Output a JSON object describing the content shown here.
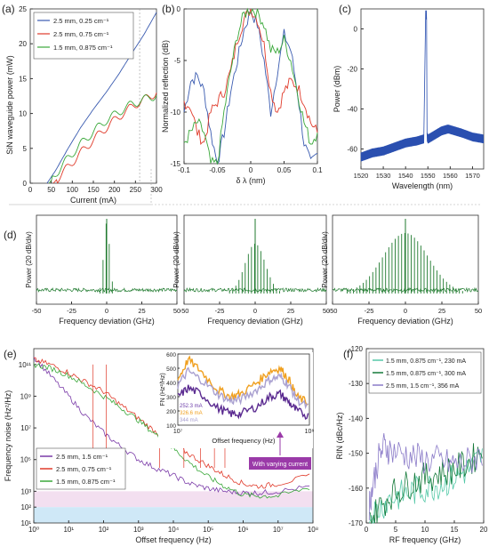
{
  "chart_data": [
    {
      "id": "a",
      "panel_label": "(a)",
      "type": "line",
      "xlabel": "Current (mA)",
      "ylabel": "SiN waveguide power (mW)",
      "xlim": [
        0,
        300
      ],
      "ylim": [
        0,
        25
      ],
      "xticks": [
        0,
        50,
        100,
        150,
        200,
        250,
        300
      ],
      "yticks": [
        0,
        5,
        10,
        15,
        20,
        25
      ],
      "legend_position": "top-left",
      "series": [
        {
          "name": "2.5 mm, 0.25 cm⁻¹",
          "color": "#3a5bb0",
          "x": [
            40,
            60,
            90,
            120,
            150,
            180,
            210,
            240,
            270,
            300
          ],
          "y": [
            0,
            1.8,
            5,
            8,
            10.6,
            13,
            15.6,
            18.5,
            21.3,
            24.5
          ]
        },
        {
          "name": "2.5 mm, 0.75 cm⁻¹",
          "color": "#e03a2a",
          "x": [
            55,
            70,
            100,
            130,
            160,
            190,
            220,
            250,
            280,
            300
          ],
          "y": [
            0,
            1,
            3,
            5,
            6.8,
            8.5,
            10,
            11.3,
            12.3,
            13
          ]
        },
        {
          "name": "1.5 mm, 0.875 cm⁻¹",
          "color": "#3aa83a",
          "x": [
            45,
            60,
            90,
            120,
            150,
            180,
            210,
            240,
            270,
            300
          ],
          "y": [
            0,
            1.3,
            3.6,
            5.6,
            7.4,
            9,
            10.2,
            11.3,
            12,
            12.6
          ]
        }
      ]
    },
    {
      "id": "b",
      "panel_label": "(b)",
      "type": "line",
      "xlabel": "δ λ (nm)",
      "ylabel": "Normalized reflection (dB)",
      "xlim": [
        -0.1,
        0.1
      ],
      "ylim": [
        -15,
        0
      ],
      "xticks": [
        -0.1,
        -0.05,
        0,
        0.05,
        0.1
      ],
      "xtick_labels": [
        "-0.1",
        "-0.05",
        "0",
        "0.05",
        "0.1"
      ],
      "yticks": [
        -15,
        -10,
        -5,
        0
      ],
      "series": [
        {
          "color": "#3a5bb0",
          "x": [
            -0.1,
            -0.09,
            -0.08,
            -0.07,
            -0.06,
            -0.05,
            -0.04,
            -0.03,
            -0.02,
            -0.01,
            0,
            0.01,
            0.02,
            0.03,
            0.04,
            0.05,
            0.06,
            0.07,
            0.08,
            0.09,
            0.1
          ],
          "y": [
            -10,
            -7,
            -6.5,
            -8,
            -12,
            -15,
            -12,
            -8,
            -5,
            -2,
            -0.2,
            -1.5,
            -5,
            -10,
            -6,
            -2.5,
            -4,
            -8,
            -13,
            -15,
            -14
          ]
        },
        {
          "color": "#e03a2a",
          "x": [
            -0.1,
            -0.09,
            -0.08,
            -0.07,
            -0.06,
            -0.05,
            -0.04,
            -0.03,
            -0.02,
            -0.01,
            0,
            0.01,
            0.02,
            0.03,
            0.04,
            0.05,
            0.06,
            0.07,
            0.08,
            0.09,
            0.1
          ],
          "y": [
            -9,
            -9.5,
            -12,
            -13,
            -10,
            -9,
            -8,
            -6,
            -3,
            -1,
            0,
            -1,
            -3.5,
            -8,
            -10,
            -8,
            -7,
            -7.5,
            -9,
            -11,
            -12
          ]
        },
        {
          "color": "#3aa83a",
          "x": [
            -0.1,
            -0.09,
            -0.08,
            -0.07,
            -0.06,
            -0.05,
            -0.04,
            -0.03,
            -0.02,
            -0.01,
            0,
            0.01,
            0.02,
            0.03,
            0.04,
            0.05,
            0.06,
            0.07,
            0.08,
            0.09,
            0.1
          ],
          "y": [
            -13,
            -12,
            -11,
            -12,
            -15,
            -15,
            -10,
            -6,
            -2.5,
            -0.5,
            0,
            -0.3,
            -1.5,
            -4,
            -4.2,
            -3,
            -5,
            -8,
            -11,
            -13,
            -12
          ]
        }
      ]
    },
    {
      "id": "c",
      "panel_label": "(c)",
      "type": "line",
      "xlabel": "Wavelength (nm)",
      "ylabel": "Power (dBm)",
      "xlim": [
        1520,
        1575
      ],
      "ylim": [
        -70,
        10
      ],
      "xticks": [
        1520,
        1530,
        1540,
        1550,
        1560,
        1570
      ],
      "yticks": [
        -60,
        -40,
        -20,
        0
      ],
      "series": [
        {
          "color": "#2a4fb0",
          "x": [
            1520,
            1525,
            1530,
            1535,
            1540,
            1545,
            1548,
            1549,
            1549.3,
            1549.6,
            1550,
            1553,
            1556,
            1559,
            1562,
            1565,
            1570,
            1575
          ],
          "y": [
            -64,
            -62,
            -61,
            -59,
            -57,
            -56,
            -55,
            7,
            7,
            -54,
            -55,
            -53,
            -51,
            -50,
            -51,
            -52,
            -54,
            -55
          ]
        }
      ]
    },
    {
      "id": "d",
      "panel_label": "(d)",
      "type": "line",
      "xlabel": "Frequency deviation (GHz)",
      "ylabel": "Power (20 dB/div)",
      "xlim": [
        -50,
        50
      ],
      "xticks": [
        -50,
        -25,
        0,
        25,
        50
      ],
      "subplots": [
        {
          "color": "#1f7a2e",
          "sideband_spacing_ghz": 2.2,
          "envelope_width_ghz": 3,
          "peak_level": 1.0
        },
        {
          "color": "#1f7a2e",
          "sideband_spacing_ghz": 2.2,
          "envelope_width_ghz": 10,
          "peak_level": 0.7
        },
        {
          "color": "#1f7a2e",
          "sideband_spacing_ghz": 2.2,
          "envelope_width_ghz": 22,
          "peak_level": 0.85
        }
      ]
    },
    {
      "id": "e",
      "panel_label": "(e)",
      "type": "line",
      "log_x": true,
      "log_y": true,
      "xlabel": "Offset frequency (Hz)",
      "ylabel": "Frequency noise (Hz²/Hz)",
      "xlim": [
        1,
        100000000
      ],
      "ylim": [
        10,
        1000000000000
      ],
      "xtick_labels": [
        "10⁰",
        "10¹",
        "10²",
        "10³",
        "10⁴",
        "10⁵",
        "10⁶",
        "10⁷",
        "10⁸"
      ],
      "ytick_labels": [
        "10¹",
        "10²",
        "10³",
        "10⁵",
        "10⁷",
        "10⁹",
        "10¹¹"
      ],
      "ytick_values": [
        10,
        100,
        1000,
        100000,
        10000000,
        1000000000,
        100000000000
      ],
      "legend_position": "bottom-left",
      "shaded_bands": [
        {
          "from": 100,
          "to": 1000,
          "color": "#f3dff0"
        },
        {
          "from": 10,
          "to": 100,
          "color": "#cfe8f7"
        }
      ],
      "series": [
        {
          "name": "2.5 mm, 1.5 cm⁻¹",
          "color": "#7a3aa8",
          "x": [
            1,
            3,
            10,
            30,
            100,
            300,
            1000,
            3000,
            10000,
            30000,
            100000,
            300000,
            1000000,
            3000000,
            10000000,
            100000000
          ],
          "y": [
            300000000000,
            20000000000,
            1000000000,
            60000000,
            5000000,
            700000,
            100000,
            30000,
            10000,
            3000,
            1500,
            1000,
            800,
            800,
            1000,
            2000
          ]
        },
        {
          "name": "2.5 mm, 0.75 cm⁻¹",
          "color": "#e03a2a",
          "x": [
            1,
            3,
            10,
            30,
            100,
            300,
            1000,
            3000,
            10000,
            30000,
            100000,
            300000,
            1000000,
            3000000,
            10000000,
            100000000
          ],
          "y": [
            200000000000,
            100000000000,
            30000000000,
            8000000000,
            2000000000,
            300000000,
            40000000,
            6000000,
            1000000,
            200000,
            40000,
            10000,
            3000,
            2000,
            3000,
            10000
          ]
        },
        {
          "name": "1.5 mm, 0.875 cm⁻¹",
          "color": "#3aa83a",
          "x": [
            1,
            3,
            10,
            30,
            100,
            300,
            1000,
            3000,
            10000,
            30000,
            100000,
            300000,
            1000000,
            3000000,
            10000000,
            100000000
          ],
          "y": [
            100000000000,
            60000000000,
            20000000000,
            5000000000,
            1000000000,
            200000000,
            30000000,
            4000000,
            500000,
            60000,
            8000,
            2000,
            600,
            500,
            500,
            2000
          ]
        }
      ],
      "inset": {
        "ylabel": "FN (Hz²/Hz)",
        "xlabel": "Offset frequency (Hz)",
        "log_x": true,
        "xlim": [
          10000000,
          100000000
        ],
        "ylim": [
          100,
          600
        ],
        "xtick_labels": [
          "10⁷",
          "10⁸"
        ],
        "yticks": [
          100,
          200,
          300,
          400,
          500,
          600
        ],
        "labels": [
          {
            "text": "252.3 mA",
            "color": "#6a3aa8"
          },
          {
            "text": "326.6 mA",
            "color": "#f0a020"
          },
          {
            "text": "344 mA",
            "color": "#a9a0d0"
          }
        ],
        "series": [
          {
            "color": "#f0a020",
            "x": [
              10000000,
              12000000,
              15000000,
              20000000,
              25000000,
              30000000,
              40000000,
              50000000,
              60000000,
              70000000,
              80000000,
              100000000
            ],
            "y": [
              420,
              560,
              480,
              350,
              300,
              320,
              400,
              480,
              500,
              420,
              300,
              250
            ]
          },
          {
            "color": "#a9a0d0",
            "x": [
              10000000,
              12000000,
              15000000,
              20000000,
              25000000,
              30000000,
              40000000,
              50000000,
              60000000,
              70000000,
              80000000,
              100000000
            ],
            "y": [
              380,
              480,
              420,
              320,
              270,
              280,
              350,
              420,
              440,
              380,
              280,
              220
            ]
          },
          {
            "color": "#5a2a90",
            "x": [
              10000000,
              12000000,
              15000000,
              20000000,
              25000000,
              30000000,
              40000000,
              50000000,
              60000000,
              70000000,
              80000000,
              100000000
            ],
            "y": [
              300,
              360,
              320,
              220,
              180,
              180,
              230,
              300,
              320,
              260,
              200,
              160
            ]
          }
        ]
      },
      "annotation": "With varying current"
    },
    {
      "id": "f",
      "panel_label": "(f)",
      "type": "line",
      "xlabel": "RF frequency (GHz)",
      "ylabel": "RIN (dBc/Hz)",
      "xlim": [
        0,
        20
      ],
      "ylim": [
        -170,
        -120
      ],
      "xticks": [
        0,
        5,
        10,
        15,
        20
      ],
      "yticks": [
        -170,
        -160,
        -150,
        -140,
        -130,
        -120
      ],
      "legend_position": "top",
      "series": [
        {
          "name": "1.5 mm, 0.875 cm⁻¹, 230 mA",
          "color": "#55c9a8",
          "x": [
            0.5,
            2,
            4,
            6,
            8,
            10,
            12,
            14,
            16,
            18,
            20
          ],
          "y": [
            -168,
            -166,
            -163,
            -162,
            -161,
            -160,
            -159,
            -158,
            -156,
            -154,
            -150
          ]
        },
        {
          "name": "1.5 mm, 0.875 cm⁻¹, 300 mA",
          "color": "#157a3a",
          "x": [
            0.5,
            2,
            4,
            6,
            8,
            10,
            12,
            14,
            16,
            18,
            20
          ],
          "y": [
            -170,
            -166,
            -162,
            -160,
            -158,
            -157,
            -156,
            -155,
            -154,
            -152,
            -148
          ]
        },
        {
          "name": "2.5 mm, 1.5 cm⁻¹, 356 mA",
          "color": "#8a7ac8",
          "x": [
            0.5,
            1,
            2,
            3,
            4,
            6,
            8,
            10,
            12,
            14,
            16,
            18,
            20
          ],
          "y": [
            -165,
            -160,
            -152,
            -148,
            -149,
            -150,
            -151,
            -152,
            -152,
            -153,
            -153,
            -152,
            -150
          ]
        }
      ]
    }
  ]
}
